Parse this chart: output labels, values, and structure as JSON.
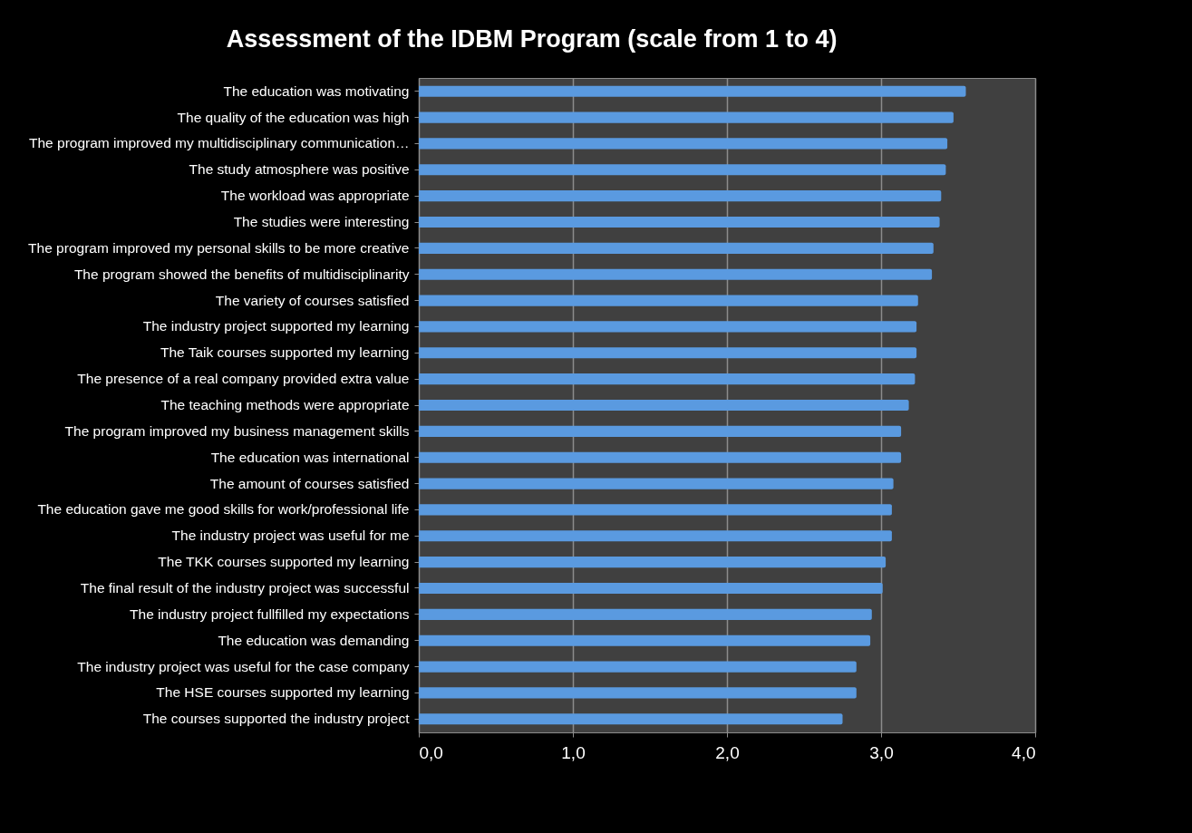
{
  "chart_data": {
    "type": "bar",
    "orientation": "horizontal",
    "title": "Assessment of the IDBM Program (scale from 1 to 4)",
    "categories": [
      "The education was motivating",
      "The quality of the education was high",
      "The program improved my multidisciplinary communication…",
      "The study atmosphere was positive",
      "The workload was appropriate",
      "The studies were interesting",
      "The program improved my personal skills to be more creative",
      "The program showed the benefits of multidisciplinarity",
      "The variety of courses satisfied",
      "The industry project supported my learning",
      "The Taik courses supported my learning",
      "The presence of a real company provided extra value",
      "The teaching methods were appropriate",
      "The program improved my business management skills",
      "The education was international",
      "The amount of courses satisfied",
      "The education gave me good skills for work/professional life",
      "The industry project was useful for me",
      "The TKK courses supported my learning",
      "The final result of the industry project was successful",
      "The industry project fullfilled my expectations",
      "The education was demanding",
      "The industry project was useful for the case company",
      "The HSE courses supported my learning",
      "The courses supported the industry project"
    ],
    "series": [
      {
        "color": "#5a9ae0",
        "values": [
          3.55,
          3.47,
          3.43,
          3.42,
          3.39,
          3.38,
          3.34,
          3.33,
          3.24,
          3.23,
          3.23,
          3.22,
          3.18,
          3.13,
          3.13,
          3.08,
          3.07,
          3.07,
          3.03,
          3.01,
          2.94,
          2.93,
          2.84,
          2.84,
          2.75
        ]
      }
    ],
    "xlim": [
      0,
      4
    ],
    "xticks": [
      {
        "value": 0,
        "label": "0,0"
      },
      {
        "value": 1,
        "label": "1,0"
      },
      {
        "value": 2,
        "label": "2,0"
      },
      {
        "value": 3,
        "label": "3,0"
      },
      {
        "value": 4,
        "label": "4,0"
      }
    ],
    "grid": "x",
    "legend": false
  }
}
